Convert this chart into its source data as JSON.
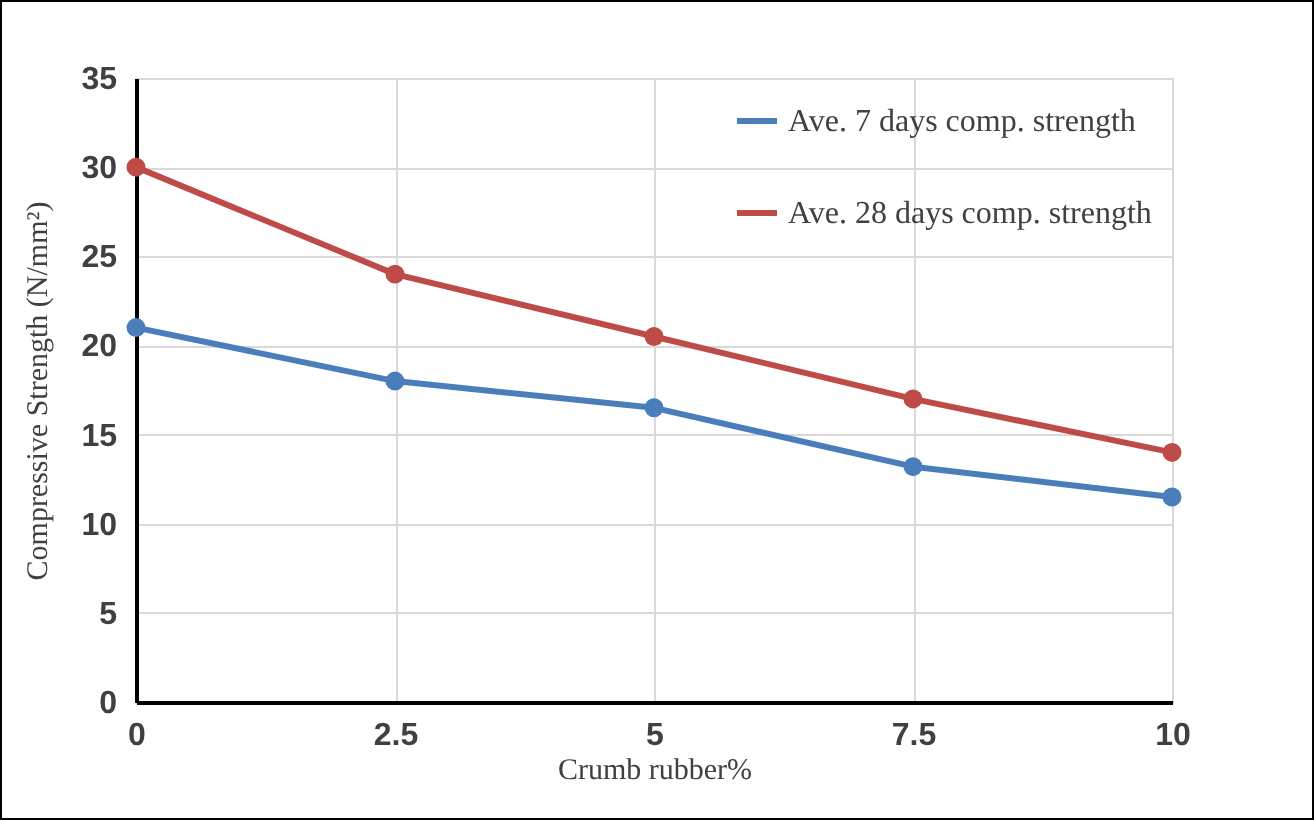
{
  "chart_data": {
    "type": "line",
    "xlabel": "Crumb rubber%",
    "ylabel": "Compressive Strength (N/mm²)",
    "x": [
      0,
      2.5,
      5,
      7.5,
      10
    ],
    "series": [
      {
        "name": "Ave. 7 days comp. strength",
        "color": "#4a7ebb",
        "values": [
          21,
          18,
          16.5,
          13.2,
          11.5
        ]
      },
      {
        "name": "Ave. 28 days comp. strength",
        "color": "#be4b48",
        "values": [
          30,
          24,
          20.5,
          17,
          14
        ]
      }
    ],
    "xlim": [
      0,
      10
    ],
    "xticks": [
      0,
      2.5,
      5,
      7.5,
      10
    ],
    "ylim": [
      0,
      35
    ],
    "yticks": [
      0,
      5,
      10,
      15,
      20,
      25,
      30,
      35
    ],
    "grid": true,
    "legend": "top right",
    "marker": "circle",
    "line_style": "solid"
  }
}
